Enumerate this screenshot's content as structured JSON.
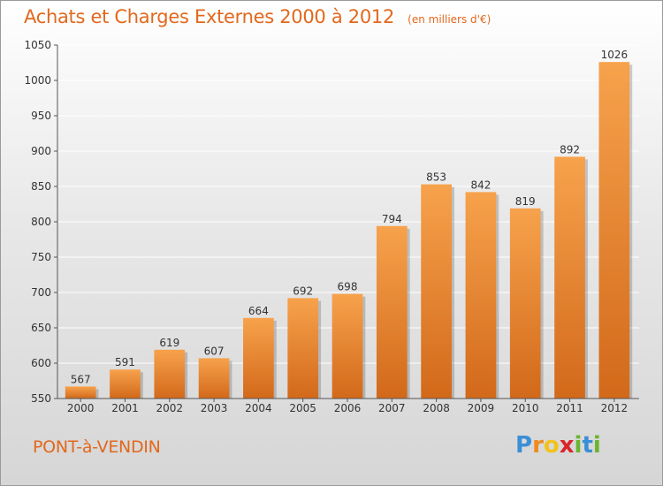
{
  "chart_data": {
    "type": "bar",
    "title": "Achats et Charges Externes 2000 à 2012",
    "subtitle": "(en milliers d'€)",
    "categories": [
      "2000",
      "2001",
      "2002",
      "2003",
      "2004",
      "2005",
      "2006",
      "2007",
      "2008",
      "2009",
      "2010",
      "2011",
      "2012"
    ],
    "values": [
      567,
      591,
      619,
      607,
      664,
      692,
      698,
      794,
      853,
      842,
      819,
      892,
      1026
    ],
    "ylim": [
      550,
      1050
    ],
    "yticks": [
      550,
      600,
      650,
      700,
      750,
      800,
      850,
      900,
      950,
      1000,
      1050
    ],
    "grid": true,
    "legend": "none",
    "bar_color_top": "#f7a24c",
    "bar_color_bottom": "#d2691a"
  },
  "location": {
    "name": "PONT-à-VENDIN"
  },
  "brand": {
    "letters": [
      "P",
      "r",
      "o",
      "x",
      "i",
      "t",
      "i"
    ],
    "colors": [
      "#3a8fd6",
      "#f08a1d",
      "#f2c21a",
      "#d9262b",
      "#6bb431",
      "#3a8fd6",
      "#6bb431"
    ]
  },
  "colors": {
    "title": "#e2681d",
    "grid": "#ffffff",
    "axis_text": "#333333"
  }
}
